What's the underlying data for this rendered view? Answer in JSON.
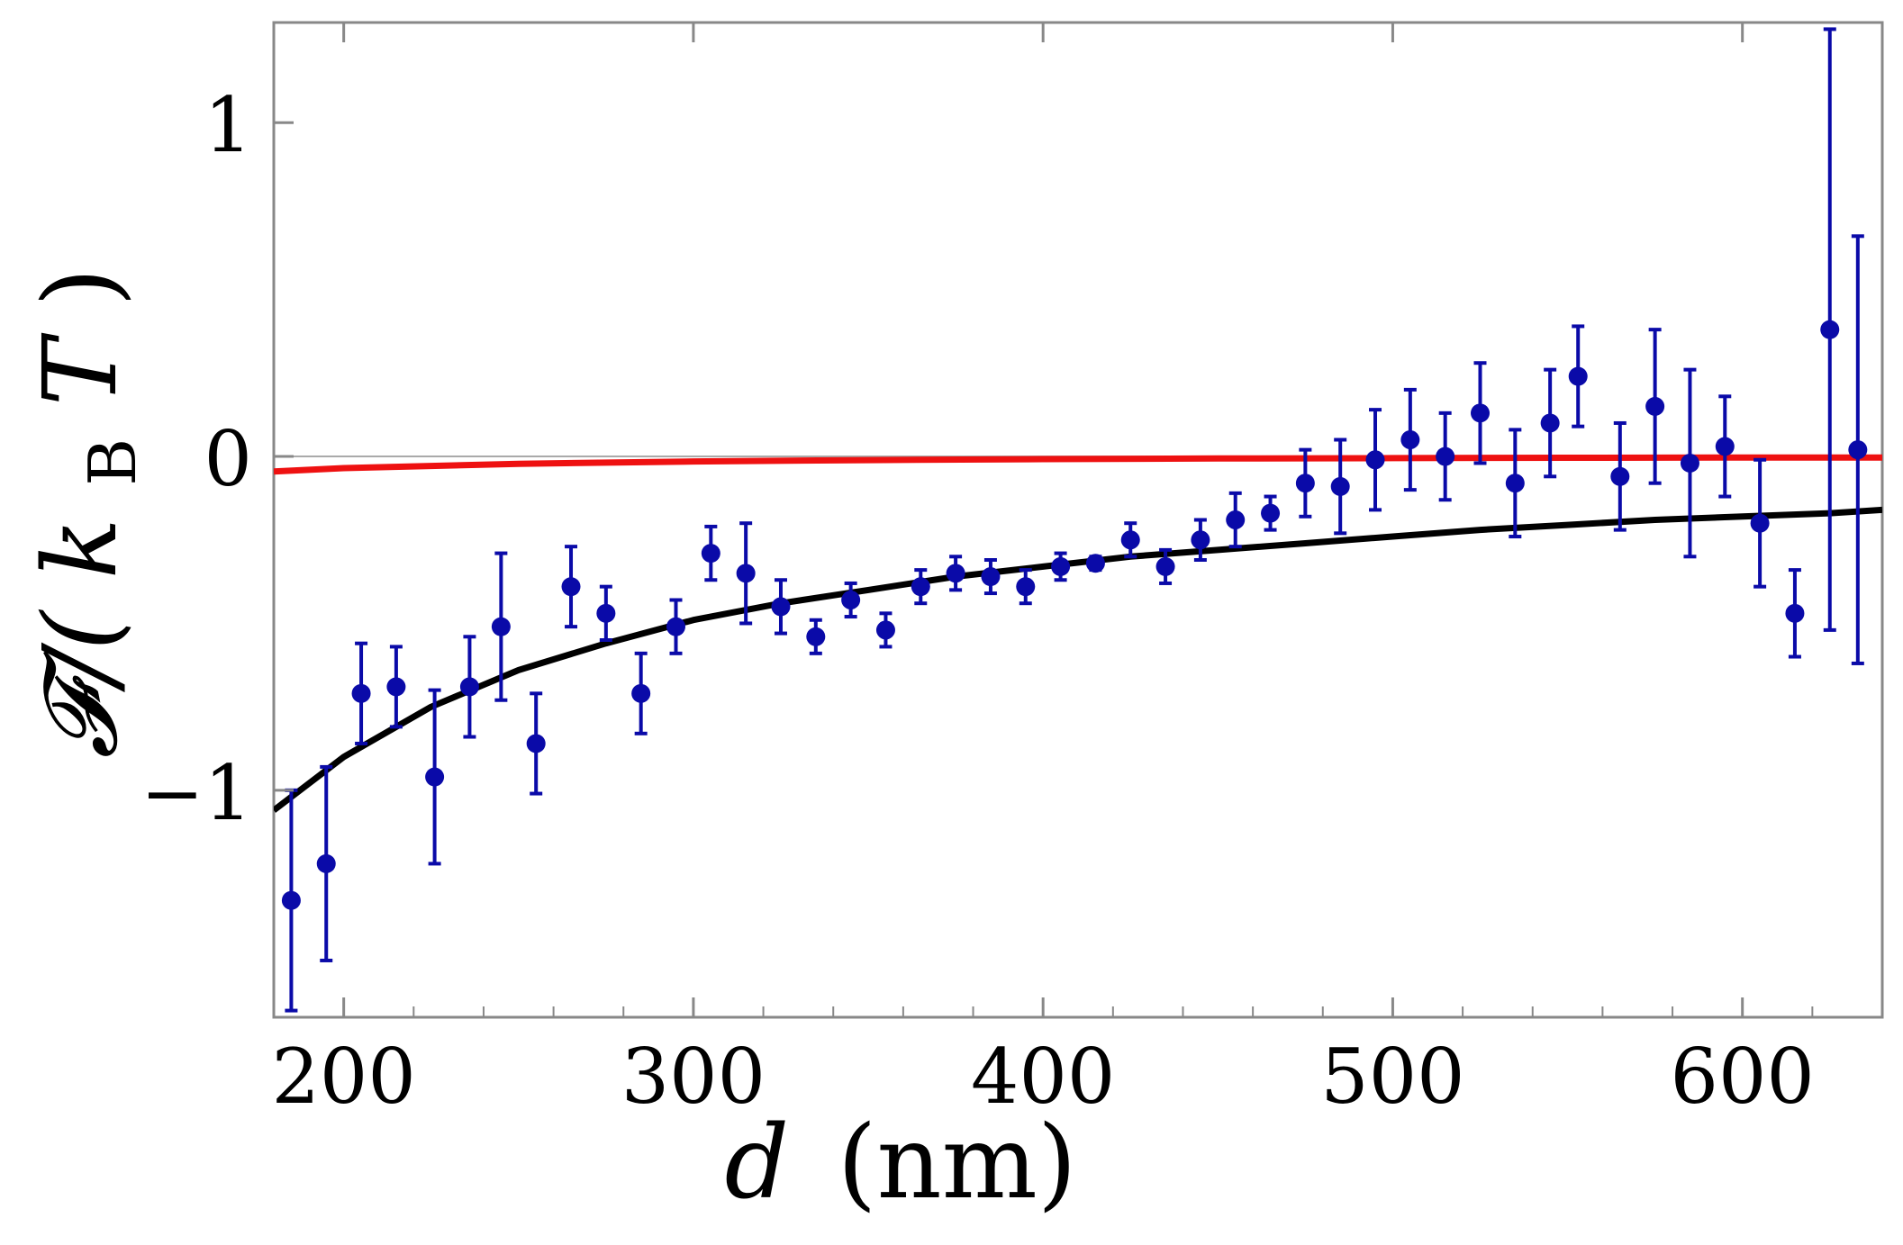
{
  "chart_data": {
    "type": "scatter",
    "title": "",
    "xlabel_symbol": "d",
    "xlabel_unit": "(nm)",
    "ylabel_main": "𝓕/(",
    "ylabel_k": "k",
    "ylabel_sub": "B",
    "ylabel_T": "T",
    "ylabel_close": ")",
    "xlim": [
      180,
      640
    ],
    "ylim": [
      -1.68,
      1.3
    ],
    "xticks": [
      200,
      300,
      400,
      500,
      600
    ],
    "xtick_labels": [
      "200",
      "300",
      "400",
      "500",
      "600"
    ],
    "xminor_ticks": [
      220,
      240,
      260,
      280,
      320,
      340,
      360,
      380,
      420,
      440,
      460,
      480,
      520,
      540,
      560,
      580,
      620
    ],
    "yticks": [
      1,
      0,
      -1
    ],
    "ytick_labels": [
      "1",
      "0",
      "−1"
    ],
    "grid": false,
    "series": [
      {
        "kind": "errorbar",
        "color": "#0a0aa8",
        "points": [
          {
            "x": 185,
            "y": -1.33,
            "err": 0.33
          },
          {
            "x": 195,
            "y": -1.22,
            "err": 0.29
          },
          {
            "x": 205,
            "y": -0.71,
            "err": 0.15
          },
          {
            "x": 215,
            "y": -0.69,
            "err": 0.12
          },
          {
            "x": 226,
            "y": -0.96,
            "err": 0.26
          },
          {
            "x": 236,
            "y": -0.69,
            "err": 0.15
          },
          {
            "x": 245,
            "y": -0.51,
            "err": 0.22
          },
          {
            "x": 255,
            "y": -0.86,
            "err": 0.15
          },
          {
            "x": 265,
            "y": -0.39,
            "err": 0.12
          },
          {
            "x": 275,
            "y": -0.47,
            "err": 0.08
          },
          {
            "x": 285,
            "y": -0.71,
            "err": 0.12
          },
          {
            "x": 295,
            "y": -0.51,
            "err": 0.08
          },
          {
            "x": 305,
            "y": -0.29,
            "err": 0.08
          },
          {
            "x": 315,
            "y": -0.35,
            "err": 0.15
          },
          {
            "x": 325,
            "y": -0.45,
            "err": 0.08
          },
          {
            "x": 335,
            "y": -0.54,
            "err": 0.05
          },
          {
            "x": 345,
            "y": -0.43,
            "err": 0.05
          },
          {
            "x": 355,
            "y": -0.52,
            "err": 0.05
          },
          {
            "x": 365,
            "y": -0.39,
            "err": 0.05
          },
          {
            "x": 375,
            "y": -0.35,
            "err": 0.05
          },
          {
            "x": 385,
            "y": -0.36,
            "err": 0.05
          },
          {
            "x": 395,
            "y": -0.39,
            "err": 0.05
          },
          {
            "x": 405,
            "y": -0.33,
            "err": 0.04
          },
          {
            "x": 415,
            "y": -0.32,
            "err": 0.02
          },
          {
            "x": 425,
            "y": -0.25,
            "err": 0.05
          },
          {
            "x": 435,
            "y": -0.33,
            "err": 0.05
          },
          {
            "x": 445,
            "y": -0.25,
            "err": 0.06
          },
          {
            "x": 455,
            "y": -0.19,
            "err": 0.08
          },
          {
            "x": 465,
            "y": -0.17,
            "err": 0.05
          },
          {
            "x": 475,
            "y": -0.08,
            "err": 0.1
          },
          {
            "x": 485,
            "y": -0.09,
            "err": 0.14
          },
          {
            "x": 495,
            "y": -0.01,
            "err": 0.15
          },
          {
            "x": 505,
            "y": 0.05,
            "err": 0.15
          },
          {
            "x": 515,
            "y": 0.0,
            "err": 0.13
          },
          {
            "x": 525,
            "y": 0.13,
            "err": 0.15
          },
          {
            "x": 535,
            "y": -0.08,
            "err": 0.16
          },
          {
            "x": 545,
            "y": 0.1,
            "err": 0.16
          },
          {
            "x": 553,
            "y": 0.24,
            "err": 0.15
          },
          {
            "x": 565,
            "y": -0.06,
            "err": 0.16
          },
          {
            "x": 575,
            "y": 0.15,
            "err": 0.23
          },
          {
            "x": 585,
            "y": -0.02,
            "err": 0.28
          },
          {
            "x": 595,
            "y": 0.03,
            "err": 0.15
          },
          {
            "x": 605,
            "y": -0.2,
            "err": 0.19
          },
          {
            "x": 615,
            "y": -0.47,
            "err": 0.13
          },
          {
            "x": 625,
            "y": 0.38,
            "err": 0.9
          },
          {
            "x": 633,
            "y": 0.02,
            "err": 0.64
          }
        ]
      },
      {
        "kind": "line",
        "color": "#000000",
        "points": [
          {
            "x": 180,
            "y": -1.06
          },
          {
            "x": 200,
            "y": -0.9
          },
          {
            "x": 225,
            "y": -0.75
          },
          {
            "x": 250,
            "y": -0.64
          },
          {
            "x": 275,
            "y": -0.56
          },
          {
            "x": 300,
            "y": -0.49
          },
          {
            "x": 325,
            "y": -0.44
          },
          {
            "x": 350,
            "y": -0.4
          },
          {
            "x": 375,
            "y": -0.36
          },
          {
            "x": 400,
            "y": -0.33
          },
          {
            "x": 425,
            "y": -0.3
          },
          {
            "x": 450,
            "y": -0.28
          },
          {
            "x": 475,
            "y": -0.26
          },
          {
            "x": 500,
            "y": -0.24
          },
          {
            "x": 525,
            "y": -0.22
          },
          {
            "x": 550,
            "y": -0.205
          },
          {
            "x": 575,
            "y": -0.19
          },
          {
            "x": 600,
            "y": -0.18
          },
          {
            "x": 625,
            "y": -0.17
          },
          {
            "x": 640,
            "y": -0.16
          }
        ]
      },
      {
        "kind": "line",
        "color": "#ee1111",
        "points": [
          {
            "x": 180,
            "y": -0.045
          },
          {
            "x": 200,
            "y": -0.035
          },
          {
            "x": 250,
            "y": -0.022
          },
          {
            "x": 300,
            "y": -0.015
          },
          {
            "x": 350,
            "y": -0.011
          },
          {
            "x": 400,
            "y": -0.008
          },
          {
            "x": 450,
            "y": -0.006
          },
          {
            "x": 500,
            "y": -0.005
          },
          {
            "x": 550,
            "y": -0.004
          },
          {
            "x": 600,
            "y": -0.003
          },
          {
            "x": 640,
            "y": -0.003
          }
        ]
      }
    ],
    "zero_line_color": "#aaaaaa",
    "frame_color": "#888888"
  }
}
